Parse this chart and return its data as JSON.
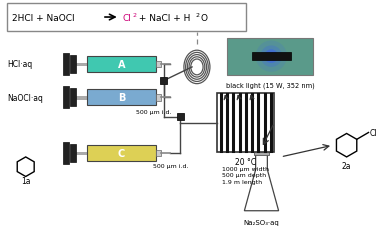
{
  "bg_color": "#ffffff",
  "cl2_color": "#cc0077",
  "syringe_A_color": "#40c8b0",
  "syringe_B_color": "#7aaad0",
  "syringe_C_color": "#ddd055",
  "label_HCl": "HCl·aq",
  "label_NaOCl": "NaOCl·aq",
  "label_500um_top": "500 μm i.d.",
  "label_500um_bot": "500 μm i.d.",
  "label_black_light": "black light (15 W, 352 nm)",
  "label_20C": "20 °C",
  "label_dims": "1000 μm width\n500 μm depth\n1.9 m length",
  "label_Na2SO3": "Na₂SO₃·aq",
  "label_1a": "1a",
  "label_2a": "2a",
  "box_color": "#5a9a8a"
}
